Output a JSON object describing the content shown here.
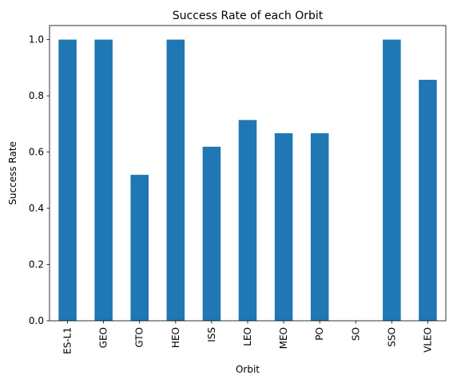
{
  "chart_data": {
    "type": "bar",
    "title": "Success Rate of each Orbit",
    "xlabel": "Orbit",
    "ylabel": "Success Rate",
    "categories": [
      "ES-L1",
      "GEO",
      "GTO",
      "HEO",
      "ISS",
      "LEO",
      "MEO",
      "PO",
      "SO",
      "SSO",
      "VLEO"
    ],
    "values": [
      1.0,
      1.0,
      0.519,
      1.0,
      0.619,
      0.714,
      0.667,
      0.667,
      0.0,
      1.0,
      0.857
    ],
    "ylim": [
      0,
      1.05
    ],
    "yticks": [
      0.0,
      0.2,
      0.4,
      0.6,
      0.8,
      1.0
    ],
    "ytick_labels": [
      "0.0",
      "0.2",
      "0.4",
      "0.6",
      "0.8",
      "1.0"
    ],
    "bar_color": "#1f77b4",
    "grid": false,
    "legend": false
  }
}
